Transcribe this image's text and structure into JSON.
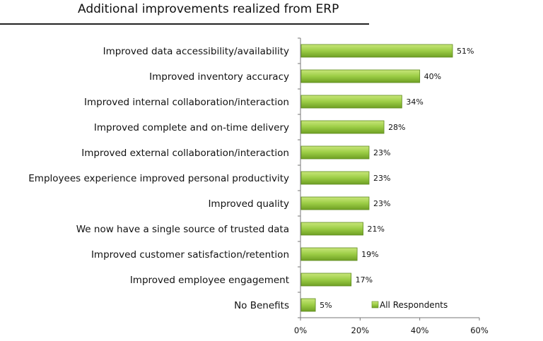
{
  "chart_data": {
    "type": "bar",
    "orientation": "horizontal",
    "title": "Additional improvements realized from ERP",
    "categories": [
      "Improved data accessibility/availability",
      "Improved inventory accuracy",
      "Improved internal collaboration/interaction",
      "Improved complete and on-time delivery",
      "Improved external collaboration/interaction",
      "Employees experience improved personal productivity",
      "Improved quality",
      "We now have a single source of trusted data",
      "Improved customer satisfaction/retention",
      "Improved employee engagement",
      "No Benefits"
    ],
    "series": [
      {
        "name": "All Respondents",
        "values": [
          51,
          40,
          34,
          28,
          23,
          23,
          23,
          21,
          19,
          17,
          5
        ],
        "color": "#8dc63f"
      }
    ],
    "data_labels": [
      "51%",
      "40%",
      "34%",
      "28%",
      "23%",
      "23%",
      "23%",
      "21%",
      "19%",
      "17%",
      "5%"
    ],
    "xlim": [
      0,
      60
    ],
    "xticks": [
      "0%",
      "20%",
      "40%",
      "60%"
    ],
    "grid": false,
    "legend": "bottom-right inside plot"
  }
}
